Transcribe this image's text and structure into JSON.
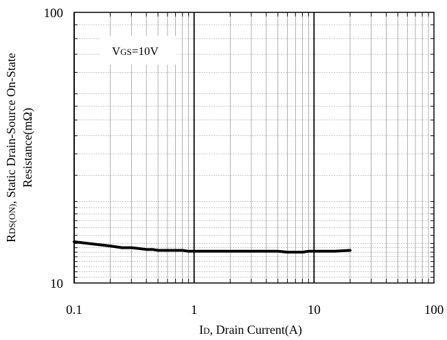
{
  "chart_data": {
    "type": "line",
    "x_scale": "log",
    "y_scale": "log",
    "xlim": [
      0.1,
      100
    ],
    "ylim": [
      10,
      100
    ],
    "x_ticks": [
      "0.1",
      "1",
      "10",
      "100"
    ],
    "y_ticks": [
      "10",
      "100"
    ],
    "x_tick_values": [
      0.1,
      1,
      10,
      100
    ],
    "y_tick_values": [
      10,
      100
    ],
    "xlabel": {
      "prefix": "I",
      "sub": "D",
      "rest": ", Drain Current(A)"
    },
    "ylabel": {
      "line1_prefix": "R",
      "line1_sub": "DS(ON)",
      "line1_rest": ", Static Drain-Source On-State",
      "line2": "Resistance(mΩ)"
    },
    "annotation": {
      "prefix": "V",
      "sub": "GS",
      "rest": "=10V"
    },
    "grid": "major-minor",
    "series": [
      {
        "x": [
          0.1,
          0.15,
          0.2,
          0.25,
          0.3,
          0.35,
          0.4,
          0.45,
          0.5,
          0.6,
          0.8,
          0.9,
          1,
          2,
          3,
          4,
          5,
          6,
          7,
          8,
          9,
          10,
          15,
          20
        ],
        "y": [
          14.2,
          13.9,
          13.7,
          13.5,
          13.5,
          13.4,
          13.3,
          13.3,
          13.2,
          13.2,
          13.2,
          13.1,
          13.1,
          13.1,
          13.1,
          13.1,
          13.1,
          13.0,
          13.0,
          13.0,
          13.1,
          13.1,
          13.1,
          13.2
        ]
      }
    ]
  }
}
